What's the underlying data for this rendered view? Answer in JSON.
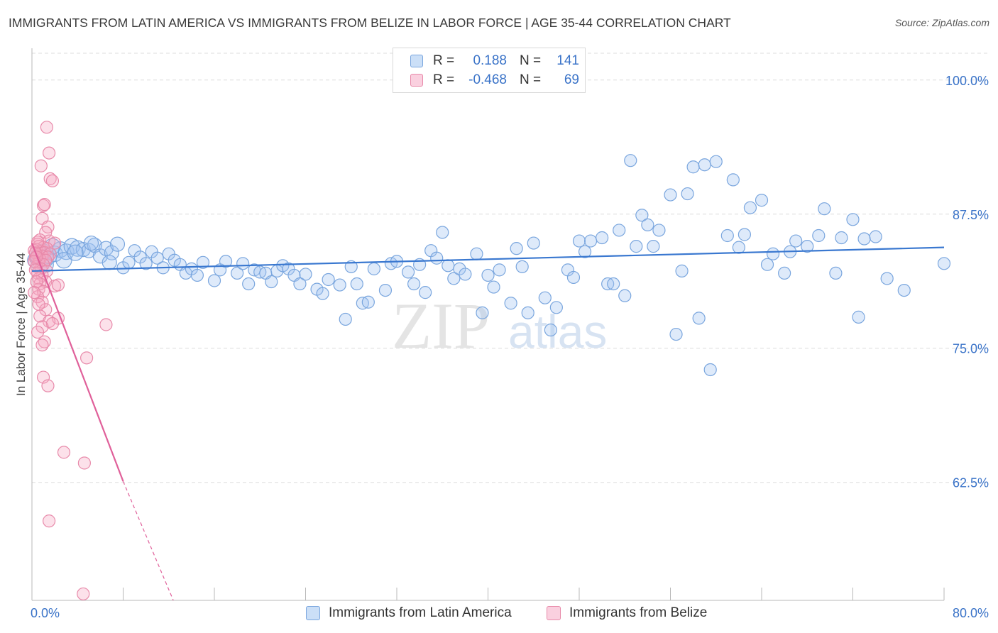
{
  "title": "IMMIGRANTS FROM LATIN AMERICA VS IMMIGRANTS FROM BELIZE IN LABOR FORCE | AGE 35-44 CORRELATION CHART",
  "source": "Source: ZipAtlas.com",
  "watermark": "ZIPatlas",
  "colors": {
    "blue_fill": "rgba(160,196,240,0.35)",
    "blue_stroke": "#7aa6de",
    "blue_line": "#3a78d0",
    "pink_fill": "rgba(245,170,196,0.35)",
    "pink_stroke": "#e88aaa",
    "pink_line": "#e0609a",
    "tick_text": "#3a73c8",
    "grid": "#dcdcdc"
  },
  "legend": {
    "rows": [
      {
        "r_label": "R =",
        "r_value": "0.188",
        "n_label": "N =",
        "n_value": "141",
        "color": "blue"
      },
      {
        "r_label": "R =",
        "r_value": "-0.468",
        "n_label": "N =",
        "n_value": "69",
        "color": "pink"
      }
    ]
  },
  "bottom_legend": {
    "blue": "Immigrants from Latin America",
    "pink": "Immigrants from Belize"
  },
  "chart_data": {
    "type": "scatter",
    "xlabel": "",
    "ylabel": "In Labor Force | Age 35-44",
    "xlim": [
      0,
      80
    ],
    "ylim": [
      51.5,
      102.5
    ],
    "x_tick_labels": [
      {
        "value": 0,
        "label": "0.0%"
      },
      {
        "value": 80,
        "label": "80.0%"
      }
    ],
    "y_tick_labels": [
      {
        "value": 100,
        "label": "100.0%"
      },
      {
        "value": 87.5,
        "label": "87.5%"
      },
      {
        "value": 75,
        "label": "75.0%"
      },
      {
        "value": 62.5,
        "label": "62.5%"
      }
    ],
    "x_minor_ticks": [
      0,
      8,
      16,
      24,
      32,
      40,
      48,
      56,
      64,
      72,
      80
    ],
    "grid": true,
    "series": [
      {
        "name": "Immigrants from Latin America",
        "color": "blue",
        "trend": {
          "x": [
            0,
            80
          ],
          "y": [
            82.2,
            84.4
          ]
        },
        "points": [
          [
            0.5,
            83.5
          ],
          [
            0.8,
            83.7
          ],
          [
            1.0,
            84.0
          ],
          [
            1.2,
            83.3
          ],
          [
            1.5,
            83.6
          ],
          [
            2.0,
            83.8
          ],
          [
            2.5,
            84.2
          ],
          [
            3.0,
            84.0
          ],
          [
            3.5,
            84.5
          ],
          [
            4.0,
            84.3
          ],
          [
            4.5,
            84.2
          ],
          [
            5.0,
            84.1
          ],
          [
            5.5,
            84.6
          ],
          [
            6.0,
            83.6
          ],
          [
            6.5,
            84.3
          ],
          [
            7.0,
            83.9
          ],
          [
            7.5,
            84.7
          ],
          [
            8.0,
            82.5
          ],
          [
            8.5,
            83.0
          ],
          [
            9.0,
            84.1
          ],
          [
            9.5,
            83.5
          ],
          [
            10.0,
            82.9
          ],
          [
            10.5,
            84.0
          ],
          [
            11.0,
            83.4
          ],
          [
            11.5,
            82.5
          ],
          [
            12.0,
            83.8
          ],
          [
            12.5,
            83.2
          ],
          [
            13.0,
            82.8
          ],
          [
            13.5,
            82.0
          ],
          [
            14.0,
            82.4
          ],
          [
            14.5,
            81.8
          ],
          [
            15.0,
            83.0
          ],
          [
            16.0,
            81.3
          ],
          [
            16.5,
            82.3
          ],
          [
            17.0,
            83.1
          ],
          [
            18.0,
            82.0
          ],
          [
            18.5,
            82.9
          ],
          [
            19.0,
            81.0
          ],
          [
            19.5,
            82.3
          ],
          [
            20.0,
            82.1
          ],
          [
            20.5,
            82.0
          ],
          [
            21.0,
            81.2
          ],
          [
            21.5,
            82.2
          ],
          [
            22.0,
            82.7
          ],
          [
            22.5,
            82.4
          ],
          [
            23.0,
            81.8
          ],
          [
            23.5,
            81.0
          ],
          [
            24.0,
            81.9
          ],
          [
            25.0,
            80.5
          ],
          [
            25.5,
            80.1
          ],
          [
            26.0,
            81.4
          ],
          [
            27.0,
            80.9
          ],
          [
            27.5,
            77.7
          ],
          [
            28.0,
            82.6
          ],
          [
            28.5,
            81.0
          ],
          [
            29.0,
            79.2
          ],
          [
            29.5,
            79.3
          ],
          [
            30.0,
            82.4
          ],
          [
            31.0,
            80.4
          ],
          [
            31.5,
            82.9
          ],
          [
            32.0,
            83.1
          ],
          [
            33.0,
            82.1
          ],
          [
            33.5,
            81.0
          ],
          [
            34.0,
            82.8
          ],
          [
            34.5,
            80.2
          ],
          [
            35.0,
            84.1
          ],
          [
            35.5,
            83.4
          ],
          [
            36.0,
            85.8
          ],
          [
            36.5,
            82.7
          ],
          [
            37.0,
            81.5
          ],
          [
            37.5,
            82.4
          ],
          [
            38.0,
            81.9
          ],
          [
            39.0,
            83.8
          ],
          [
            39.5,
            78.3
          ],
          [
            40.0,
            81.8
          ],
          [
            40.5,
            80.7
          ],
          [
            41.0,
            82.3
          ],
          [
            42.0,
            79.2
          ],
          [
            42.5,
            84.3
          ],
          [
            43.0,
            82.6
          ],
          [
            43.5,
            78.3
          ],
          [
            44.0,
            84.8
          ],
          [
            45.0,
            79.7
          ],
          [
            45.5,
            76.7
          ],
          [
            46.0,
            78.8
          ],
          [
            47.0,
            82.3
          ],
          [
            47.5,
            81.6
          ],
          [
            48.0,
            85.0
          ],
          [
            48.5,
            84.0
          ],
          [
            49.0,
            85.0
          ],
          [
            50.0,
            85.3
          ],
          [
            50.5,
            81.0
          ],
          [
            51.0,
            81.0
          ],
          [
            51.5,
            86.0
          ],
          [
            52.0,
            79.9
          ],
          [
            52.5,
            92.5
          ],
          [
            53.0,
            84.5
          ],
          [
            53.5,
            87.4
          ],
          [
            54.0,
            86.5
          ],
          [
            54.5,
            84.5
          ],
          [
            55.0,
            86.0
          ],
          [
            56.0,
            89.3
          ],
          [
            56.5,
            76.3
          ],
          [
            57.0,
            82.2
          ],
          [
            57.5,
            89.4
          ],
          [
            58.0,
            91.9
          ],
          [
            58.5,
            77.8
          ],
          [
            59.0,
            92.1
          ],
          [
            59.5,
            73.0
          ],
          [
            60.0,
            92.4
          ],
          [
            61.0,
            85.5
          ],
          [
            61.5,
            90.7
          ],
          [
            62.0,
            84.4
          ],
          [
            62.5,
            85.6
          ],
          [
            63.0,
            88.1
          ],
          [
            64.0,
            88.8
          ],
          [
            64.5,
            82.8
          ],
          [
            65.0,
            83.8
          ],
          [
            66.0,
            82.0
          ],
          [
            66.5,
            84.0
          ],
          [
            67.0,
            85.0
          ],
          [
            68.0,
            84.5
          ],
          [
            69.0,
            85.5
          ],
          [
            69.5,
            88.0
          ],
          [
            70.5,
            82.0
          ],
          [
            71.0,
            85.3
          ],
          [
            72.0,
            87.0
          ],
          [
            72.5,
            77.9
          ],
          [
            73.0,
            85.2
          ],
          [
            74.0,
            85.4
          ],
          [
            75.0,
            81.5
          ],
          [
            76.5,
            80.4
          ],
          [
            80.0,
            82.9
          ],
          [
            1.2,
            82.8
          ],
          [
            0.3,
            83.2
          ],
          [
            1.8,
            84.5
          ],
          [
            2.8,
            83.2
          ],
          [
            3.8,
            83.9
          ],
          [
            5.2,
            84.8
          ],
          [
            6.8,
            83.0
          ]
        ],
        "sizes_note": "larger markers near x≈0-4"
      },
      {
        "name": "Immigrants from Belize",
        "color": "pink",
        "trend": {
          "x": [
            0,
            8
          ],
          "y": [
            84.8,
            62.6
          ],
          "dashed_extension": {
            "x": [
              8,
              12.4
            ],
            "y": [
              62.6,
              50.5
            ]
          }
        },
        "points": [
          [
            1.3,
            95.6
          ],
          [
            1.5,
            93.2
          ],
          [
            0.8,
            92.0
          ],
          [
            1.6,
            90.8
          ],
          [
            1.8,
            90.6
          ],
          [
            1.0,
            88.3
          ],
          [
            1.1,
            88.4
          ],
          [
            0.9,
            87.1
          ],
          [
            1.4,
            86.3
          ],
          [
            1.2,
            85.8
          ],
          [
            0.7,
            85.1
          ],
          [
            1.5,
            85.0
          ],
          [
            2.0,
            84.8
          ],
          [
            0.5,
            84.7
          ],
          [
            0.6,
            84.5
          ],
          [
            1.0,
            84.4
          ],
          [
            1.3,
            84.3
          ],
          [
            0.4,
            84.2
          ],
          [
            0.8,
            84.0
          ],
          [
            1.1,
            83.9
          ],
          [
            1.6,
            83.8
          ],
          [
            0.5,
            83.7
          ],
          [
            0.9,
            83.6
          ],
          [
            1.4,
            83.5
          ],
          [
            0.3,
            83.4
          ],
          [
            0.7,
            83.3
          ],
          [
            1.2,
            83.2
          ],
          [
            0.6,
            83.0
          ],
          [
            1.0,
            82.8
          ],
          [
            0.4,
            82.6
          ],
          [
            0.8,
            82.4
          ],
          [
            1.3,
            82.2
          ],
          [
            0.5,
            82.0
          ],
          [
            0.9,
            81.8
          ],
          [
            0.6,
            81.5
          ],
          [
            1.2,
            81.2
          ],
          [
            0.7,
            81.0
          ],
          [
            2.0,
            80.8
          ],
          [
            2.3,
            80.9
          ],
          [
            0.6,
            80.5
          ],
          [
            1.0,
            80.3
          ],
          [
            0.5,
            79.8
          ],
          [
            0.9,
            79.3
          ],
          [
            1.2,
            78.6
          ],
          [
            0.7,
            78.0
          ],
          [
            2.3,
            77.8
          ],
          [
            1.5,
            77.5
          ],
          [
            1.8,
            77.3
          ],
          [
            0.9,
            77.0
          ],
          [
            6.5,
            77.2
          ],
          [
            0.5,
            76.5
          ],
          [
            1.1,
            75.6
          ],
          [
            0.9,
            75.3
          ],
          [
            4.8,
            74.1
          ],
          [
            1.0,
            72.3
          ],
          [
            1.4,
            71.5
          ],
          [
            2.8,
            65.3
          ],
          [
            4.6,
            64.3
          ],
          [
            1.5,
            58.9
          ],
          [
            4.5,
            52.1
          ],
          [
            0.2,
            84.1
          ],
          [
            0.3,
            83.9
          ],
          [
            0.4,
            83.5
          ],
          [
            0.2,
            83.1
          ],
          [
            0.5,
            84.9
          ],
          [
            0.3,
            82.3
          ],
          [
            0.4,
            81.2
          ],
          [
            0.2,
            80.2
          ],
          [
            0.6,
            79.1
          ]
        ]
      }
    ]
  }
}
